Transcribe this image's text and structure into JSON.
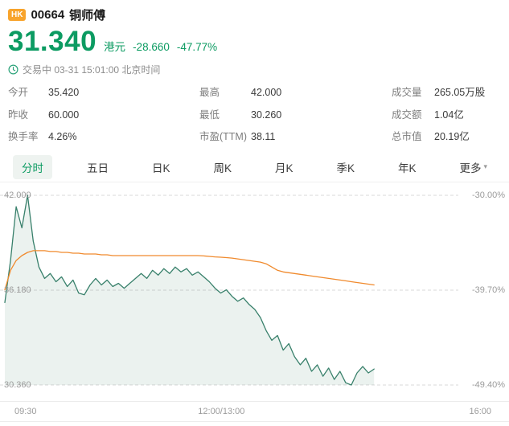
{
  "header": {
    "market_badge": "HK",
    "stock_code": "00664",
    "stock_name": "铜师傅",
    "price": "31.340",
    "currency": "港元",
    "change": "-28.660",
    "change_pct": "-47.77%",
    "status": "交易中 03-31 15:01:00 北京时间"
  },
  "stats": {
    "columns": [
      {
        "rows": [
          {
            "label": "今开",
            "value": "35.420"
          },
          {
            "label": "昨收",
            "value": "60.000"
          },
          {
            "label": "换手率",
            "value": "4.26%"
          }
        ]
      },
      {
        "rows": [
          {
            "label": "最高",
            "value": "42.000"
          },
          {
            "label": "最低",
            "value": "30.260"
          },
          {
            "label": "市盈(TTM)",
            "value": "38.11"
          }
        ]
      },
      {
        "rows": [
          {
            "label": "成交量",
            "value": "265.05万股"
          },
          {
            "label": "成交额",
            "value": "1.04亿"
          },
          {
            "label": "总市值",
            "value": "20.19亿"
          }
        ]
      }
    ]
  },
  "tabs": {
    "items": [
      {
        "label": "分时"
      },
      {
        "label": "五日"
      },
      {
        "label": "日K"
      },
      {
        "label": "周K"
      },
      {
        "label": "月K"
      },
      {
        "label": "季K"
      },
      {
        "label": "年K"
      },
      {
        "label": "更多"
      }
    ],
    "more_arrow": "▾"
  },
  "colors": {
    "quote_green": "#0c9b62",
    "badge_orange": "#f8a42c",
    "price_line": "#38806b",
    "avg_line": "#f08a2d"
  },
  "chart_data": {
    "type": "line",
    "title": "分时",
    "x_axis_labels": [
      "09:30",
      "12:00/13:00",
      "16:00"
    ],
    "y_axis_left_labels": [
      "42.000",
      "36.180",
      "30.360"
    ],
    "y_axis_right_labels": [
      "-30.00%",
      "-39.70%",
      "-49.40%"
    ],
    "ylim": [
      30.36,
      42.0
    ],
    "grid_values": [
      42.0,
      36.18,
      30.36
    ],
    "session_progress": 0.82,
    "legend_position": "none",
    "series": [
      {
        "name": "price",
        "color": "#38806b",
        "fill": "rgba(60,125,100,0.10)",
        "values": [
          35.42,
          38.0,
          41.3,
          40.0,
          42.0,
          39.2,
          37.6,
          36.9,
          37.2,
          36.7,
          37.0,
          36.4,
          36.8,
          36.0,
          35.9,
          36.5,
          36.9,
          36.5,
          36.8,
          36.4,
          36.6,
          36.3,
          36.6,
          36.9,
          37.2,
          36.9,
          37.4,
          37.1,
          37.5,
          37.2,
          37.6,
          37.3,
          37.5,
          37.1,
          37.3,
          37.0,
          36.7,
          36.3,
          36.0,
          36.2,
          35.8,
          35.5,
          35.7,
          35.3,
          35.0,
          34.5,
          33.7,
          33.1,
          33.4,
          32.5,
          32.9,
          32.1,
          31.6,
          32.0,
          31.2,
          31.6,
          30.9,
          31.4,
          30.7,
          31.2,
          30.5,
          30.36,
          31.1,
          31.5,
          31.1,
          31.34
        ]
      },
      {
        "name": "avg-price",
        "color": "#f08a2d",
        "values": [
          36.2,
          37.4,
          38.0,
          38.3,
          38.5,
          38.6,
          38.6,
          38.6,
          38.55,
          38.55,
          38.5,
          38.5,
          38.45,
          38.45,
          38.4,
          38.4,
          38.4,
          38.35,
          38.35,
          38.3,
          38.3,
          38.3,
          38.3,
          38.3,
          38.3,
          38.3,
          38.3,
          38.3,
          38.3,
          38.3,
          38.3,
          38.3,
          38.3,
          38.3,
          38.3,
          38.28,
          38.25,
          38.22,
          38.2,
          38.18,
          38.15,
          38.1,
          38.05,
          38.0,
          37.95,
          37.9,
          37.8,
          37.6,
          37.4,
          37.3,
          37.25,
          37.2,
          37.15,
          37.1,
          37.05,
          37.0,
          36.95,
          36.9,
          36.85,
          36.8,
          36.75,
          36.7,
          36.65,
          36.6,
          36.55,
          36.5
        ]
      }
    ]
  }
}
